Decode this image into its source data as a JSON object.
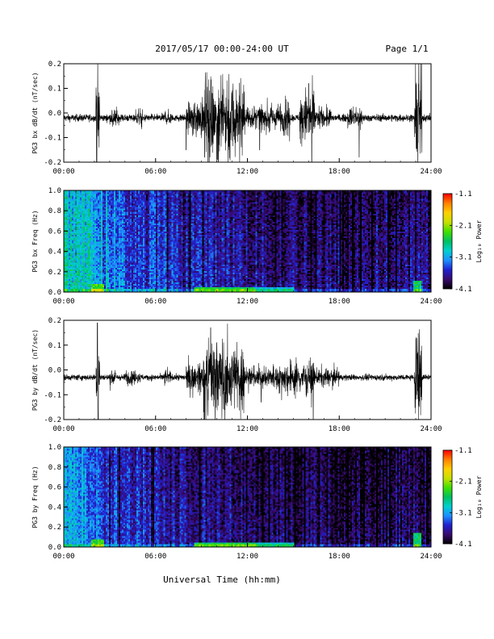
{
  "header": {
    "title": "2017/05/17  00:00-24:00 UT",
    "page": "Page 1/1"
  },
  "footer": {
    "xlabel": "Universal Time (hh:mm)"
  },
  "colors": {
    "trace": "#000000",
    "axis": "#000000",
    "background": "#ffffff"
  },
  "colorbar_stops": [
    "#000000",
    "#3a0a6e",
    "#2020d0",
    "#1e90ff",
    "#00d0d0",
    "#00c060",
    "#40e000",
    "#c8e000",
    "#ffd000",
    "#ff8000",
    "#ff0000"
  ],
  "chart_data": [
    {
      "type": "line",
      "ylabel": "PG3 bx dB/dt (nT/sec)",
      "xlim_hours": [
        0,
        24
      ],
      "ylim": [
        -0.2,
        0.2
      ],
      "x_ticks": [
        "00:00",
        "06:00",
        "12:00",
        "18:00",
        "24:00"
      ],
      "y_ticks": [
        "-0.2",
        "-0.1",
        "0.0",
        "0.1",
        "0.2"
      ],
      "baseline": -0.02,
      "noise_floor": 0.012,
      "bursts": [
        {
          "start": 2.1,
          "end": 2.35,
          "amp": 0.22
        },
        {
          "start": 3.0,
          "end": 3.6,
          "amp": 0.05
        },
        {
          "start": 4.7,
          "end": 5.2,
          "amp": 0.04
        },
        {
          "start": 6.6,
          "end": 7.0,
          "amp": 0.04
        },
        {
          "start": 8.0,
          "end": 8.4,
          "amp": 0.06
        },
        {
          "start": 8.4,
          "end": 9.2,
          "amp": 0.09
        },
        {
          "start": 9.2,
          "end": 11.8,
          "amp": 0.2
        },
        {
          "start": 11.8,
          "end": 14.3,
          "amp": 0.06
        },
        {
          "start": 14.3,
          "end": 14.8,
          "amp": 0.08
        },
        {
          "start": 15.4,
          "end": 16.4,
          "amp": 0.13
        },
        {
          "start": 16.4,
          "end": 17.5,
          "amp": 0.05
        },
        {
          "start": 18.5,
          "end": 19.5,
          "amp": 0.05
        },
        {
          "start": 22.9,
          "end": 23.4,
          "amp": 0.24
        }
      ],
      "spikes": [
        {
          "t": 8.0,
          "amp": -0.13
        },
        {
          "t": 9.2,
          "amp": -0.16
        },
        {
          "t": 9.5,
          "amp": -0.2
        },
        {
          "t": 10.1,
          "amp": -0.2
        },
        {
          "t": 12.8,
          "amp": -0.13
        },
        {
          "t": 16.2,
          "amp": -0.2
        },
        {
          "t": 16.0,
          "amp": 0.14
        },
        {
          "t": 19.3,
          "amp": -0.16
        }
      ]
    },
    {
      "type": "heatmap",
      "ylabel": "PG3 bx Freq (Hz)",
      "xlim_hours": [
        0,
        24
      ],
      "ylim": [
        0,
        1
      ],
      "x_ticks": [
        "00:00",
        "06:00",
        "12:00",
        "18:00",
        "24:00"
      ],
      "y_ticks": [
        "0.0",
        "0.2",
        "0.4",
        "0.6",
        "0.8",
        "1.0"
      ],
      "colorbar": {
        "label": "Log₁₀ Power",
        "ticks": [
          "-1.1",
          "-2.1",
          "-3.1",
          "-4.1"
        ],
        "range": [
          -4.1,
          -1.1
        ]
      },
      "background_profile": [
        {
          "t": 0,
          "level": -3.0
        },
        {
          "t": 1.5,
          "level": -3.0
        },
        {
          "t": 2.8,
          "level": -3.2
        },
        {
          "t": 4,
          "level": -3.5
        },
        {
          "t": 7,
          "level": -3.6
        },
        {
          "t": 10,
          "level": -3.7
        },
        {
          "t": 13,
          "level": -3.85
        },
        {
          "t": 18,
          "level": -3.9
        },
        {
          "t": 24,
          "level": -3.85
        }
      ],
      "hotspots": [
        {
          "t0": 1.8,
          "t1": 2.6,
          "f1": 0.08,
          "level": -2.3
        },
        {
          "t0": 8.5,
          "t1": 12.5,
          "f1": 0.05,
          "level": -2.6
        },
        {
          "t0": 12.5,
          "t1": 15.0,
          "f1": 0.05,
          "level": -3.0
        },
        {
          "t0": 22.8,
          "t1": 23.4,
          "f1": 0.12,
          "level": -2.6
        }
      ]
    },
    {
      "type": "line",
      "ylabel": "PG3 by dB/dt (nT/sec)",
      "xlim_hours": [
        0,
        24
      ],
      "ylim": [
        -0.2,
        0.2
      ],
      "x_ticks": [
        "00:00",
        "06:00",
        "12:00",
        "18:00",
        "24:00"
      ],
      "y_ticks": [
        "-0.2",
        "-0.1",
        "0.0",
        "0.1",
        "0.2"
      ],
      "baseline": -0.03,
      "noise_floor": 0.01,
      "bursts": [
        {
          "start": 2.1,
          "end": 2.35,
          "amp": 0.22
        },
        {
          "start": 3.0,
          "end": 3.5,
          "amp": 0.04
        },
        {
          "start": 4.0,
          "end": 5.0,
          "amp": 0.035
        },
        {
          "start": 6.5,
          "end": 7.0,
          "amp": 0.04
        },
        {
          "start": 8.0,
          "end": 9.1,
          "amp": 0.07
        },
        {
          "start": 9.1,
          "end": 11.8,
          "amp": 0.18
        },
        {
          "start": 11.8,
          "end": 14.0,
          "amp": 0.05
        },
        {
          "start": 14.0,
          "end": 16.4,
          "amp": 0.07
        },
        {
          "start": 16.4,
          "end": 18.0,
          "amp": 0.04
        },
        {
          "start": 22.9,
          "end": 23.4,
          "amp": 0.24
        }
      ],
      "spikes": [
        {
          "t": 2.2,
          "amp": 0.22
        },
        {
          "t": 2.25,
          "amp": -0.22
        },
        {
          "t": 9.2,
          "amp": -0.2
        },
        {
          "t": 9.6,
          "amp": 0.2
        },
        {
          "t": 10.0,
          "amp": 0.14
        },
        {
          "t": 10.5,
          "amp": -0.13
        },
        {
          "t": 16.3,
          "amp": -0.2
        },
        {
          "t": 12.9,
          "amp": -0.1
        }
      ]
    },
    {
      "type": "heatmap",
      "ylabel": "PG3 by Freq (Hz)",
      "xlim_hours": [
        0,
        24
      ],
      "ylim": [
        0,
        1
      ],
      "x_ticks": [
        "00:00",
        "06:00",
        "12:00",
        "18:00",
        "24:00"
      ],
      "y_ticks": [
        "0.0",
        "0.2",
        "0.4",
        "0.6",
        "0.8",
        "1.0"
      ],
      "colorbar": {
        "label": "Log₁₀ Power",
        "ticks": [
          "-1.1",
          "-2.1",
          "-3.1",
          "-4.1"
        ],
        "range": [
          -4.1,
          -1.1
        ]
      },
      "background_profile": [
        {
          "t": 0,
          "level": -3.2
        },
        {
          "t": 1.5,
          "level": -3.2
        },
        {
          "t": 2.8,
          "level": -3.4
        },
        {
          "t": 4,
          "level": -3.6
        },
        {
          "t": 7,
          "level": -3.7
        },
        {
          "t": 10,
          "level": -3.8
        },
        {
          "t": 13,
          "level": -3.95
        },
        {
          "t": 18,
          "level": -4.0
        },
        {
          "t": 24,
          "level": -3.95
        }
      ],
      "hotspots": [
        {
          "t0": 1.8,
          "t1": 2.6,
          "f1": 0.08,
          "level": -2.4
        },
        {
          "t0": 8.5,
          "t1": 12.5,
          "f1": 0.05,
          "level": -2.6
        },
        {
          "t0": 12.5,
          "t1": 15.0,
          "f1": 0.05,
          "level": -2.9
        },
        {
          "t0": 22.8,
          "t1": 23.4,
          "f1": 0.15,
          "level": -2.6
        }
      ]
    }
  ]
}
